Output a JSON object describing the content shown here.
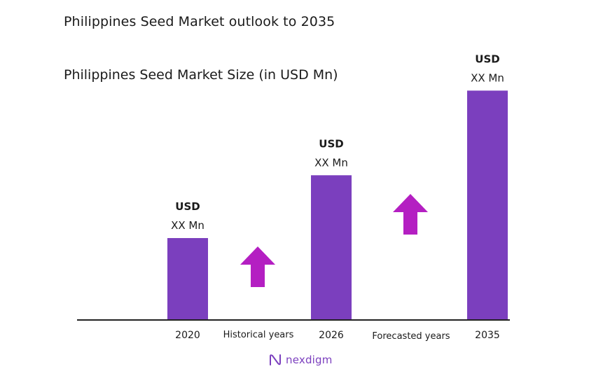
{
  "title": "Philippines Seed Market outlook to 2035",
  "subtitle": "Philippines Seed Market Size (in USD Mn)",
  "brand": "nexdigm",
  "colors": {
    "bar": "#7b3fbe",
    "arrow": "#b41fc2",
    "axis": "#222222",
    "text": "#1a1a1a"
  },
  "chart_data": {
    "type": "bar",
    "title": "Philippines Seed Market Size (in USD Mn)",
    "categories": [
      "2020",
      "2026",
      "2035"
    ],
    "values": [
      30,
      53,
      84
    ],
    "value_labels": [
      {
        "line1": "USD",
        "line2": "XX Mn"
      },
      {
        "line1": "USD",
        "line2": "XX Mn"
      },
      {
        "line1": "USD",
        "line2": "XX Mn"
      }
    ],
    "period_labels": [
      "Historical years",
      "Forecasted years"
    ],
    "grid": false,
    "legend": "none"
  }
}
